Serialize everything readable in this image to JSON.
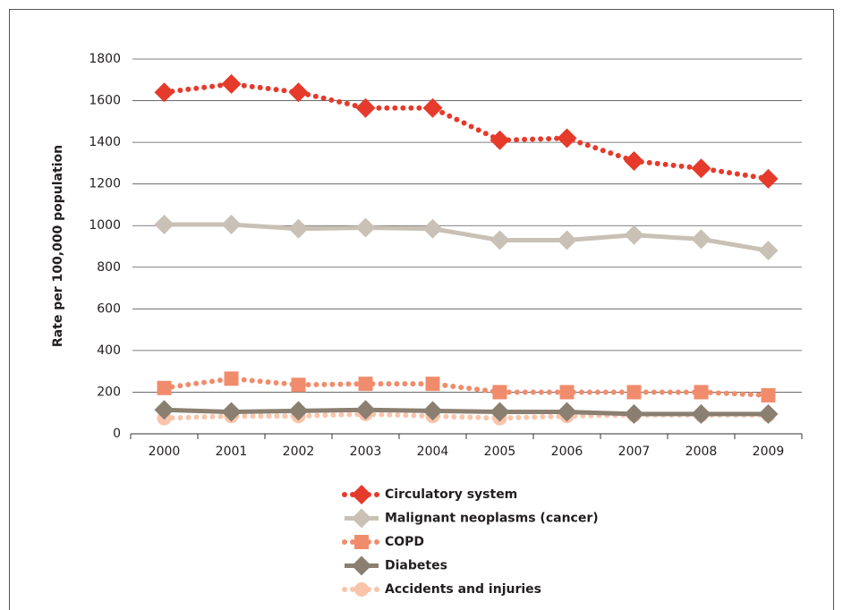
{
  "chart_data": {
    "type": "line",
    "y_label": "Rate per 100,000 population",
    "categories": [
      "2000",
      "2001",
      "2002",
      "2003",
      "2004",
      "2005",
      "2006",
      "2007",
      "2008",
      "2009"
    ],
    "series": [
      {
        "name": "Circulatory system",
        "color": "#e63a2b",
        "marker": "diamond",
        "dashed": true,
        "values": [
          1640,
          1680,
          1640,
          1565,
          1565,
          1410,
          1420,
          1310,
          1275,
          1225
        ]
      },
      {
        "name": "Malignant neoplasms (cancer)",
        "color": "#c9c1b5",
        "marker": "diamond",
        "dashed": false,
        "values": [
          1005,
          1005,
          985,
          990,
          985,
          930,
          930,
          955,
          935,
          880
        ]
      },
      {
        "name": "COPD",
        "color": "#f08c6c",
        "marker": "square",
        "dashed": true,
        "values": [
          220,
          265,
          235,
          240,
          240,
          200,
          200,
          200,
          200,
          185
        ]
      },
      {
        "name": "Diabetes",
        "color": "#8a7f70",
        "marker": "diamond",
        "dashed": false,
        "values": [
          115,
          105,
          110,
          115,
          110,
          105,
          105,
          95,
          95,
          95
        ]
      },
      {
        "name": "Accidents and injuries",
        "color": "#f9c4aa",
        "marker": "circle",
        "dashed": true,
        "values": [
          75,
          85,
          85,
          95,
          85,
          75,
          85,
          90,
          90,
          90
        ]
      }
    ],
    "ylim": [
      0,
      1800
    ],
    "yticks": [
      0,
      200,
      400,
      600,
      800,
      1000,
      1200,
      1400,
      1600,
      1800
    ],
    "grid": true
  }
}
